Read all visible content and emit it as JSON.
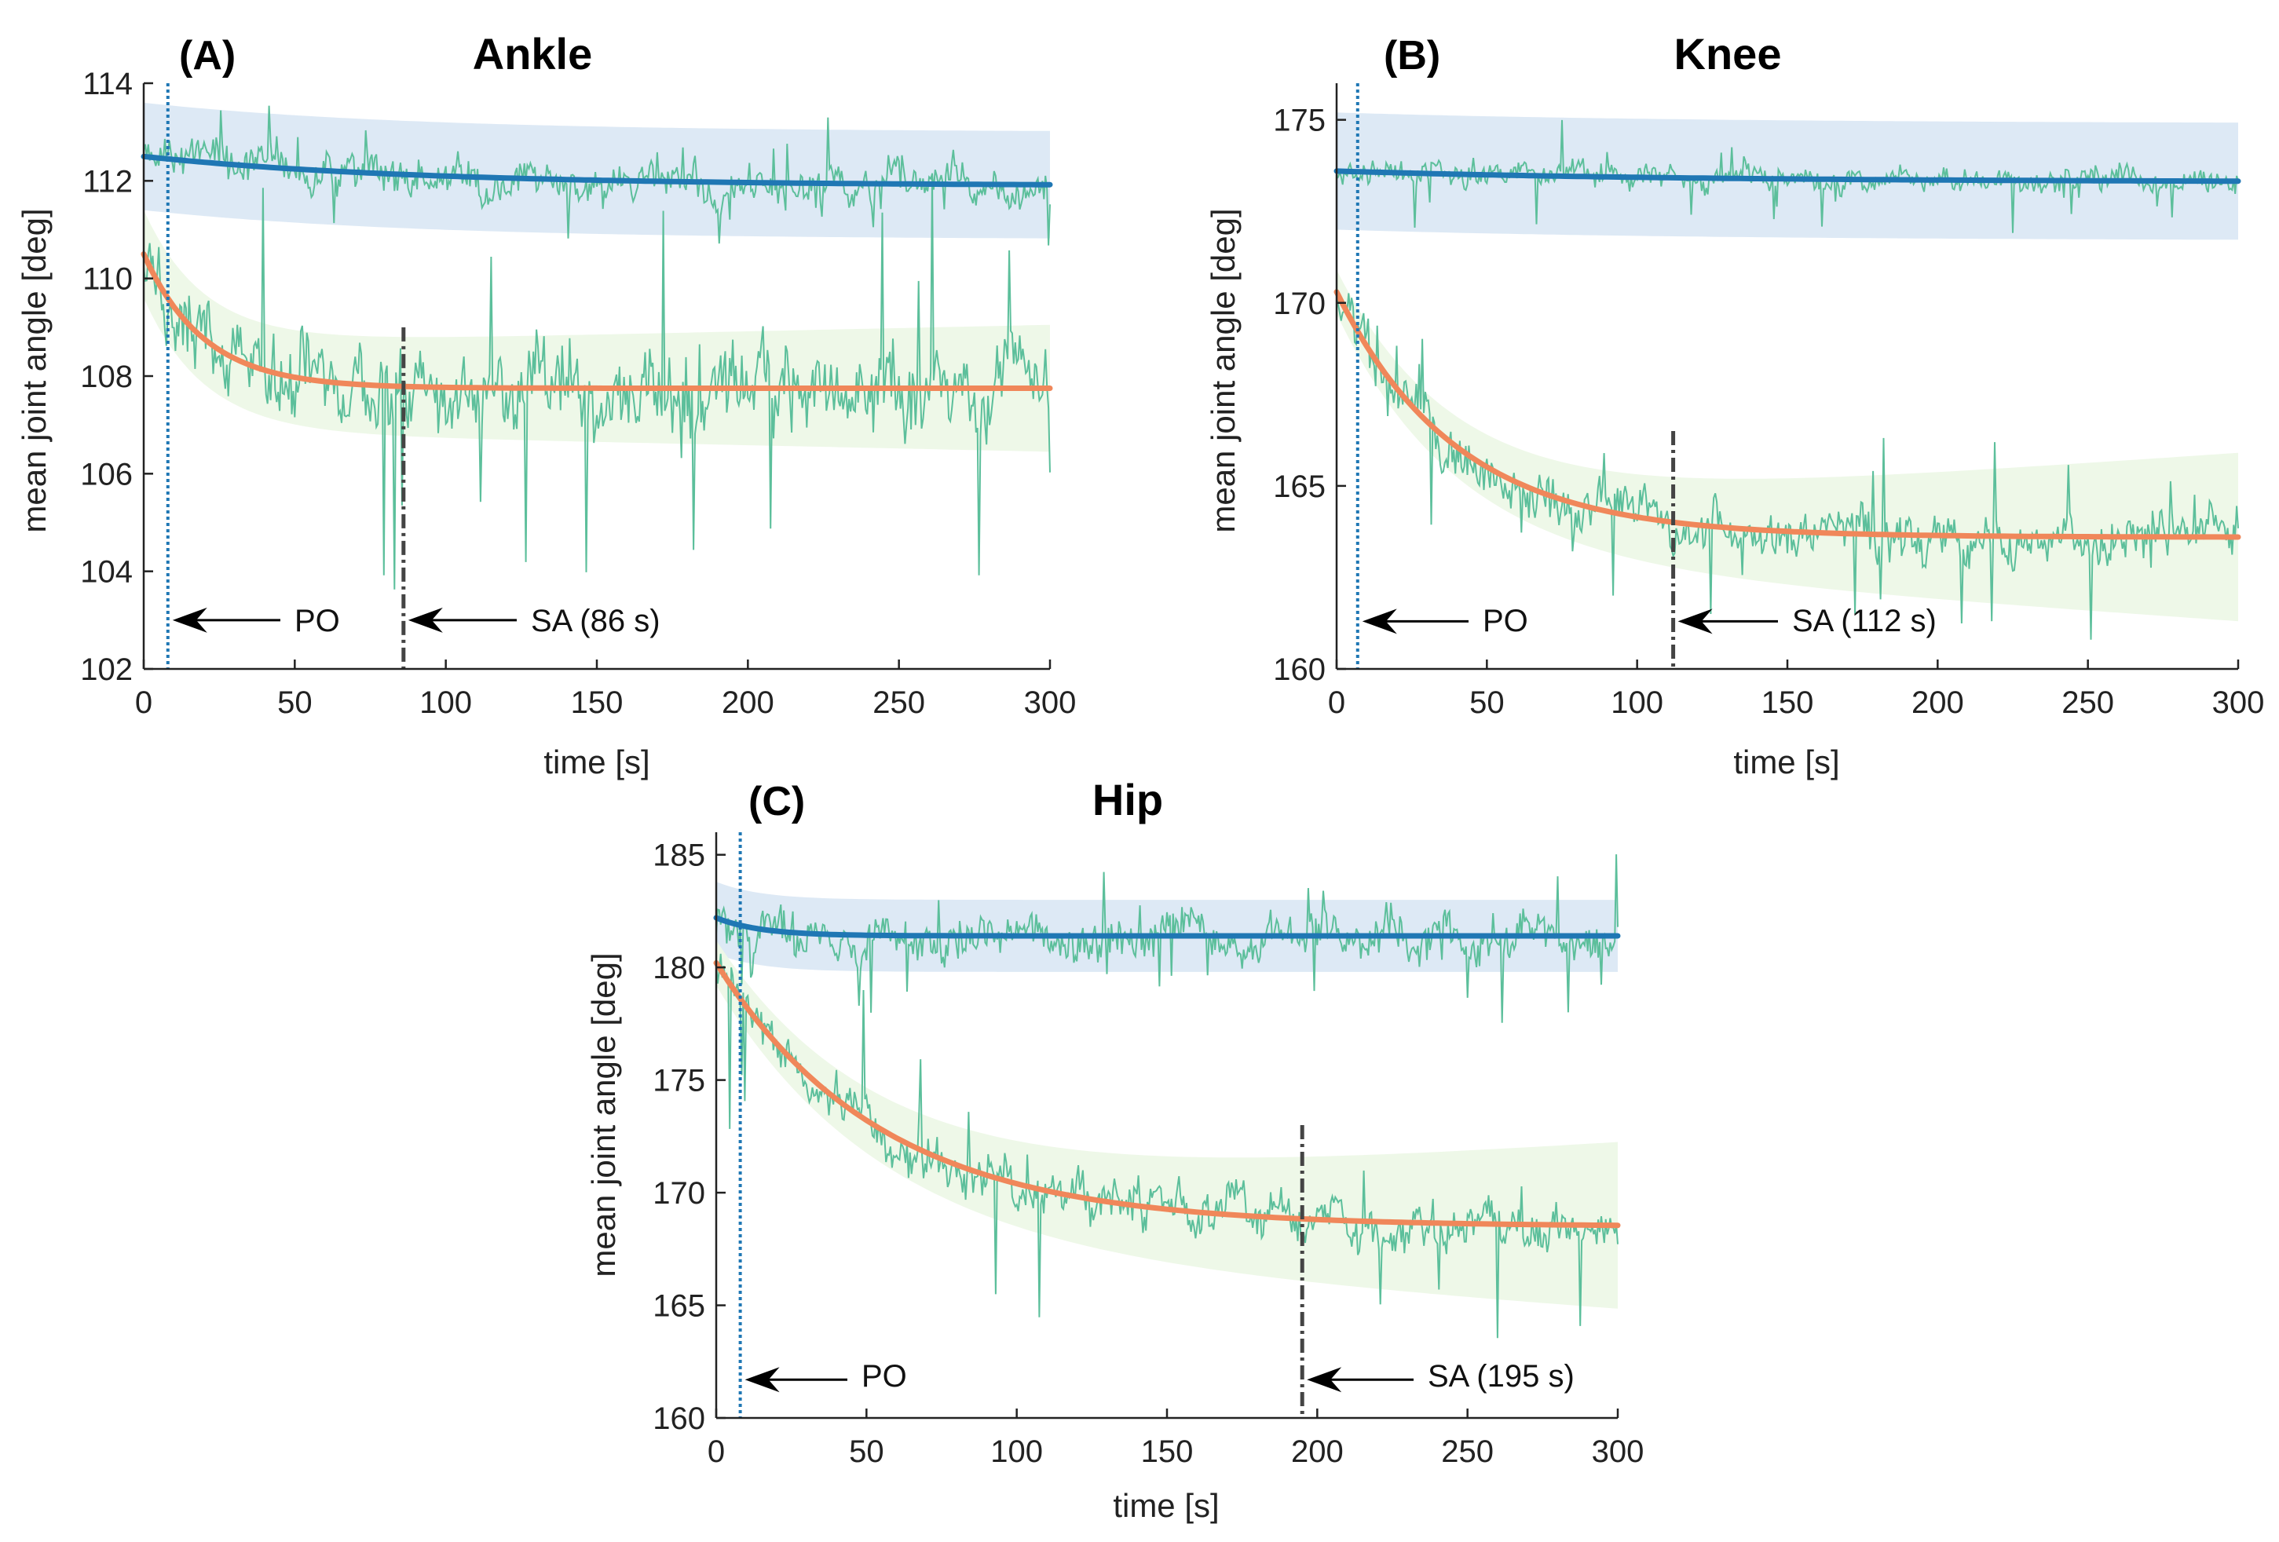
{
  "colors": {
    "stable_fit": "#1f77b4",
    "stable_band": "#dde9f5",
    "adapt_fit": "#f0875a",
    "adapt_band": "#eef8e8",
    "raw_trace": "#5cbf9b",
    "po_line": "#1f77b4",
    "sa_line": "#444444",
    "axis": "#222222"
  },
  "chart_data": [
    {
      "type": "line",
      "panel_label": "(A)",
      "title": "Ankle",
      "xlabel": "time [s]",
      "ylabel": "mean joint angle [deg]",
      "xlim": [
        0,
        300
      ],
      "ylim": [
        102,
        114
      ],
      "xticks": [
        0,
        50,
        100,
        150,
        200,
        250,
        300
      ],
      "yticks": [
        102,
        104,
        106,
        108,
        110,
        112,
        114
      ],
      "grid": false,
      "series": [
        {
          "role": "stable_fit",
          "start": 112.5,
          "end": 111.9,
          "tau": 90,
          "band": 1.1,
          "noise": 0.45,
          "spike": 1.0
        },
        {
          "role": "adapt_fit",
          "start": 110.5,
          "end": 107.75,
          "tau": 20,
          "band_start": 0.9,
          "band_end": 1.3,
          "noise": 0.9,
          "spike": 4.0
        }
      ],
      "markers": {
        "po_x": 8,
        "sa_x": 86,
        "sa_top": 109.0
      },
      "annotations": {
        "po": "PO",
        "sa": "SA (86 s)",
        "arrow_y": 103.0
      }
    },
    {
      "type": "line",
      "panel_label": "(B)",
      "title": "Knee",
      "xlabel": "time [s]",
      "ylabel": "mean joint angle [deg]",
      "xlim": [
        0,
        300
      ],
      "ylim": [
        160,
        176
      ],
      "xticks": [
        0,
        50,
        100,
        150,
        200,
        250,
        300
      ],
      "yticks": [
        160,
        165,
        170,
        175
      ],
      "grid": false,
      "series": [
        {
          "role": "stable_fit",
          "start": 173.6,
          "end": 173.3,
          "tau": 120,
          "band": 1.6,
          "noise": 0.35,
          "spike": 1.4
        },
        {
          "role": "adapt_fit",
          "start": 170.3,
          "end": 163.6,
          "tau": 40,
          "band_start": 0.6,
          "band_end": 2.3,
          "noise": 0.7,
          "spike": 2.8
        }
      ],
      "markers": {
        "po_x": 7,
        "sa_x": 112,
        "sa_top": 166.5
      },
      "annotations": {
        "po": "PO",
        "sa": "SA (112 s)",
        "arrow_y": 161.3
      }
    },
    {
      "type": "line",
      "panel_label": "(C)",
      "title": "Hip",
      "xlabel": "time [s]",
      "ylabel": "mean joint angle [deg]",
      "xlim": [
        0,
        300
      ],
      "ylim": [
        160,
        186
      ],
      "xticks": [
        0,
        50,
        100,
        150,
        200,
        250,
        300
      ],
      "yticks": [
        160,
        165,
        170,
        175,
        180,
        185
      ],
      "grid": false,
      "series": [
        {
          "role": "stable_fit",
          "start": 182.2,
          "end": 181.4,
          "tau": 15,
          "band": 1.6,
          "noise": 1.1,
          "spike": 3.0
        },
        {
          "role": "adapt_fit",
          "start": 180.2,
          "end": 168.5,
          "tau": 55,
          "band_start": 1.0,
          "band_end": 3.7,
          "noise": 1.1,
          "spike": 6.5
        }
      ],
      "markers": {
        "po_x": 8,
        "sa_x": 195,
        "sa_top": 173.0
      },
      "annotations": {
        "po": "PO",
        "sa": "SA (195 s)",
        "arrow_y": 161.7
      }
    }
  ]
}
